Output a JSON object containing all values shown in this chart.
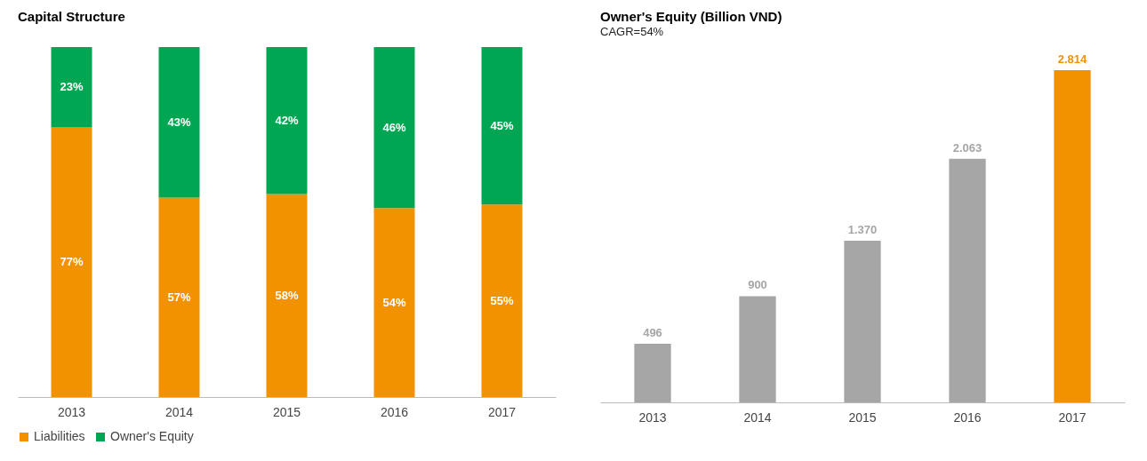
{
  "chart_data": [
    {
      "type": "bar",
      "title": "Capital Structure",
      "stacked": true,
      "legend": "bottom",
      "categories": [
        "2013",
        "2014",
        "2015",
        "2016",
        "2017"
      ],
      "series": [
        {
          "name": "Liabilities",
          "color": "#f39200",
          "values": [
            77,
            57,
            58,
            54,
            55
          ],
          "value_labels": [
            "77%",
            "57%",
            "58%",
            "54%",
            "55%"
          ]
        },
        {
          "name": "Owner's Equity",
          "color": "#00a651",
          "values": [
            23,
            43,
            42,
            46,
            45
          ],
          "value_labels": [
            "23%",
            "43%",
            "42%",
            "46%",
            "45%"
          ]
        }
      ]
    },
    {
      "type": "bar",
      "title": "Owner's Equity (Billion VND)",
      "subtitle": "CAGR=54%",
      "categories": [
        "2013",
        "2014",
        "2015",
        "2016",
        "2017"
      ],
      "values": [
        496,
        900,
        1370,
        2063,
        2814
      ],
      "colors": [
        "#a6a6a6",
        "#a6a6a6",
        "#a6a6a6",
        "#a6a6a6",
        "#f39200"
      ],
      "value_labels": [
        "496",
        "900",
        "1.370",
        "2.063",
        "2.814"
      ]
    }
  ]
}
